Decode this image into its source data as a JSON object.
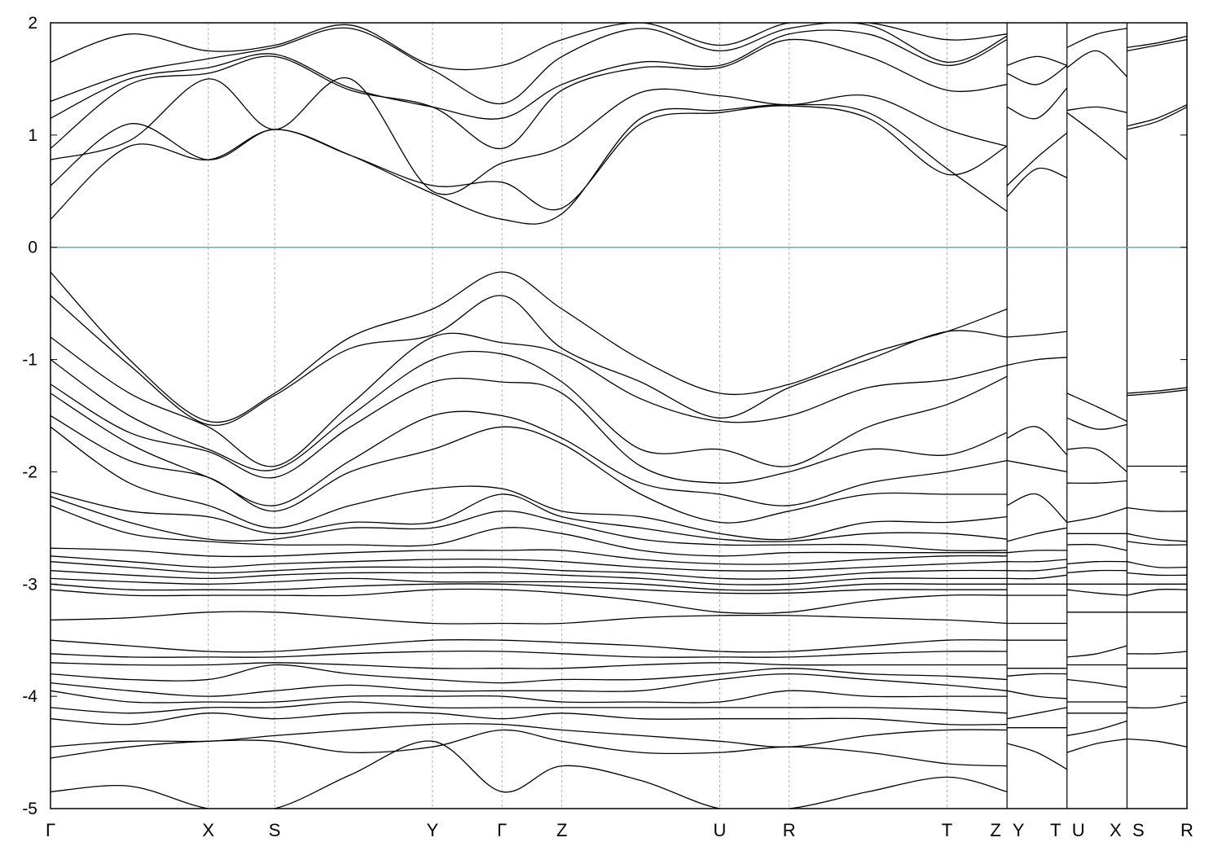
{
  "chart_data": {
    "type": "line",
    "title": "",
    "xlabel": "",
    "ylabel": "",
    "ylim": [
      -5,
      2
    ],
    "yticks": [
      "2",
      "1",
      "0",
      "-1",
      "-2",
      "-3",
      "-4",
      "-5"
    ],
    "grid": "vertical dashed lines at high-symmetry points",
    "reference_line": {
      "y": 0,
      "color": "#5aafc6"
    },
    "kpoints": [
      {
        "label": "Γ",
        "x": 0.0
      },
      {
        "label": "X",
        "x": 1.0
      },
      {
        "label": "S",
        "x": 1.42
      },
      {
        "label": "Y",
        "x": 2.42
      },
      {
        "label": "Γ",
        "x": 2.86
      },
      {
        "label": "Z",
        "x": 3.24
      },
      {
        "label": "U",
        "x": 4.24
      },
      {
        "label": "R",
        "x": 4.68
      },
      {
        "label": "T",
        "x": 5.68
      },
      {
        "label": "Z",
        "x": 6.06
      },
      {
        "label": "Y",
        "x": 6.06
      },
      {
        "label": "T",
        "x": 6.44
      },
      {
        "label": "U",
        "x": 6.44
      },
      {
        "label": "X",
        "x": 6.82
      },
      {
        "label": "S",
        "x": 6.82
      },
      {
        "label": "R",
        "x": 7.2
      }
    ],
    "xlim": [
      0,
      7.2
    ],
    "segments": [
      {
        "x": [
          0,
          0.5,
          1.0,
          1.42,
          1.9,
          2.42,
          2.86,
          3.24,
          3.74,
          4.24,
          4.68,
          5.18,
          5.68,
          6.06
        ],
        "bands": [
          [
            0.25,
            0.9,
            0.78,
            1.05,
            0.82,
            0.48,
            0.25,
            0.3,
            1.15,
            1.22,
            1.27,
            1.2,
            0.7,
            0.32
          ],
          [
            0.55,
            1.1,
            0.78,
            1.05,
            0.82,
            0.55,
            0.58,
            0.35,
            1.1,
            1.2,
            1.26,
            1.15,
            0.65,
            0.9
          ],
          [
            0.78,
            0.95,
            1.5,
            1.05,
            1.5,
            0.5,
            0.75,
            0.9,
            1.38,
            1.35,
            1.27,
            1.35,
            1.05,
            0.9
          ],
          [
            0.88,
            1.45,
            1.55,
            1.7,
            1.4,
            1.25,
            0.88,
            1.4,
            1.6,
            1.6,
            1.85,
            1.7,
            1.4,
            1.45
          ],
          [
            1.15,
            1.5,
            1.6,
            1.72,
            1.42,
            1.25,
            1.15,
            1.45,
            1.65,
            1.62,
            1.9,
            1.9,
            1.62,
            1.85
          ],
          [
            1.3,
            1.55,
            1.68,
            1.78,
            1.95,
            1.58,
            1.28,
            1.7,
            1.95,
            1.75,
            1.95,
            1.98,
            1.65,
            1.88
          ],
          [
            1.65,
            1.9,
            1.75,
            1.8,
            1.98,
            1.62,
            1.62,
            1.85,
            2.0,
            1.8,
            2.0,
            2.0,
            1.85,
            1.9
          ],
          [
            -0.22,
            -1.0,
            -1.55,
            -1.3,
            -0.8,
            -0.55,
            -0.22,
            -0.55,
            -1.0,
            -1.3,
            -1.22,
            -0.95,
            -0.75,
            -0.55
          ],
          [
            -0.43,
            -1.05,
            -1.58,
            -1.32,
            -0.9,
            -0.78,
            -0.43,
            -0.9,
            -1.2,
            -1.52,
            -1.25,
            -1.0,
            -0.75,
            -0.8
          ],
          [
            -0.8,
            -1.3,
            -1.6,
            -1.95,
            -1.4,
            -0.8,
            -0.85,
            -0.95,
            -1.35,
            -1.55,
            -1.5,
            -1.25,
            -1.18,
            -1.05
          ],
          [
            -1.0,
            -1.5,
            -1.8,
            -1.98,
            -1.5,
            -1.0,
            -0.95,
            -1.2,
            -1.8,
            -1.8,
            -1.95,
            -1.6,
            -1.4,
            -1.15
          ],
          [
            -1.22,
            -1.65,
            -1.82,
            -2.05,
            -1.6,
            -1.2,
            -1.2,
            -1.3,
            -1.95,
            -2.1,
            -2.0,
            -1.8,
            -1.85,
            -1.65
          ],
          [
            -1.3,
            -1.75,
            -2.05,
            -2.3,
            -1.9,
            -1.5,
            -1.5,
            -1.7,
            -2.1,
            -2.2,
            -2.3,
            -2.1,
            -2.0,
            -1.9
          ],
          [
            -1.5,
            -1.9,
            -2.05,
            -2.35,
            -2.0,
            -1.8,
            -1.6,
            -1.75,
            -2.2,
            -2.45,
            -2.35,
            -2.2,
            -2.2,
            -2.2
          ],
          [
            -1.6,
            -2.1,
            -2.3,
            -2.5,
            -2.3,
            -2.15,
            -2.15,
            -2.35,
            -2.4,
            -2.55,
            -2.6,
            -2.45,
            -2.45,
            -2.4
          ],
          [
            -2.18,
            -2.35,
            -2.4,
            -2.55,
            -2.45,
            -2.45,
            -2.2,
            -2.4,
            -2.5,
            -2.6,
            -2.62,
            -2.55,
            -2.55,
            -2.6
          ],
          [
            -2.22,
            -2.45,
            -2.6,
            -2.6,
            -2.5,
            -2.5,
            -2.35,
            -2.45,
            -2.6,
            -2.65,
            -2.65,
            -2.65,
            -2.7,
            -2.7
          ],
          [
            -2.3,
            -2.55,
            -2.62,
            -2.65,
            -2.65,
            -2.65,
            -2.5,
            -2.55,
            -2.7,
            -2.75,
            -2.72,
            -2.72,
            -2.72,
            -2.72
          ],
          [
            -2.68,
            -2.7,
            -2.75,
            -2.75,
            -2.72,
            -2.7,
            -2.7,
            -2.7,
            -2.78,
            -2.82,
            -2.82,
            -2.78,
            -2.75,
            -2.75
          ],
          [
            -2.75,
            -2.8,
            -2.85,
            -2.82,
            -2.8,
            -2.78,
            -2.78,
            -2.8,
            -2.85,
            -2.88,
            -2.88,
            -2.85,
            -2.82,
            -2.8
          ],
          [
            -2.8,
            -2.85,
            -2.9,
            -2.88,
            -2.85,
            -2.85,
            -2.85,
            -2.88,
            -2.9,
            -2.95,
            -2.95,
            -2.9,
            -2.88,
            -2.88
          ],
          [
            -2.88,
            -2.92,
            -2.95,
            -2.92,
            -2.9,
            -2.9,
            -2.9,
            -2.92,
            -2.95,
            -3.0,
            -3.0,
            -2.95,
            -2.95,
            -2.95
          ],
          [
            -2.95,
            -2.98,
            -3.0,
            -2.98,
            -2.95,
            -2.98,
            -2.98,
            -2.98,
            -3.0,
            -3.05,
            -3.05,
            -3.0,
            -3.0,
            -3.0
          ],
          [
            -3.0,
            -3.05,
            -3.05,
            -3.05,
            -3.02,
            -3.0,
            -3.0,
            -3.02,
            -3.05,
            -3.08,
            -3.08,
            -3.05,
            -3.05,
            -3.05
          ],
          [
            -3.05,
            -3.1,
            -3.1,
            -3.1,
            -3.1,
            -3.05,
            -3.05,
            -3.08,
            -3.15,
            -3.25,
            -3.25,
            -3.15,
            -3.1,
            -3.1
          ],
          [
            -3.32,
            -3.3,
            -3.25,
            -3.25,
            -3.3,
            -3.35,
            -3.35,
            -3.35,
            -3.3,
            -3.28,
            -3.28,
            -3.3,
            -3.32,
            -3.35
          ],
          [
            -3.5,
            -3.55,
            -3.6,
            -3.6,
            -3.55,
            -3.5,
            -3.5,
            -3.52,
            -3.55,
            -3.6,
            -3.6,
            -3.55,
            -3.5,
            -3.5
          ],
          [
            -3.62,
            -3.65,
            -3.65,
            -3.65,
            -3.62,
            -3.6,
            -3.6,
            -3.62,
            -3.65,
            -3.65,
            -3.65,
            -3.62,
            -3.6,
            -3.6
          ],
          [
            -3.7,
            -3.72,
            -3.72,
            -3.7,
            -3.72,
            -3.75,
            -3.75,
            -3.75,
            -3.72,
            -3.7,
            -3.72,
            -3.72,
            -3.72,
            -3.72
          ],
          [
            -3.8,
            -3.85,
            -3.85,
            -3.72,
            -3.8,
            -3.85,
            -3.88,
            -3.85,
            -3.85,
            -3.8,
            -3.75,
            -3.8,
            -3.82,
            -3.85
          ],
          [
            -3.88,
            -3.95,
            -4.0,
            -3.95,
            -3.9,
            -3.95,
            -3.95,
            -3.95,
            -3.95,
            -3.85,
            -3.8,
            -3.85,
            -3.9,
            -3.95
          ],
          [
            -3.95,
            -4.05,
            -4.05,
            -4.05,
            -4.0,
            -4.0,
            -4.0,
            -4.05,
            -4.05,
            -4.05,
            -3.95,
            -4.0,
            -4.0,
            -4.0
          ],
          [
            -4.1,
            -4.15,
            -4.1,
            -4.1,
            -4.05,
            -4.1,
            -4.1,
            -4.1,
            -4.1,
            -4.1,
            -4.1,
            -4.1,
            -4.12,
            -4.15
          ],
          [
            -4.2,
            -4.25,
            -4.15,
            -4.2,
            -4.15,
            -4.15,
            -4.2,
            -4.15,
            -4.2,
            -4.2,
            -4.2,
            -4.2,
            -4.25,
            -4.25
          ],
          [
            -4.45,
            -4.4,
            -4.4,
            -4.35,
            -4.3,
            -4.25,
            -4.25,
            -4.3,
            -4.35,
            -4.4,
            -4.45,
            -4.35,
            -4.3,
            -4.3
          ],
          [
            -4.55,
            -4.45,
            -4.4,
            -4.4,
            -4.5,
            -4.45,
            -4.3,
            -4.4,
            -4.5,
            -4.5,
            -4.45,
            -4.5,
            -4.6,
            -4.62
          ],
          [
            -4.85,
            -4.8,
            -5.0,
            -5.0,
            -4.7,
            -4.4,
            -4.85,
            -4.62,
            -4.75,
            -5.0,
            -5.0,
            -4.85,
            -4.72,
            -4.85
          ]
        ]
      },
      {
        "x": [
          6.06,
          6.25,
          6.44
        ],
        "bands": [
          [
            0.45,
            0.7,
            0.62
          ],
          [
            0.55,
            0.8,
            1.02
          ],
          [
            1.25,
            1.15,
            1.42
          ],
          [
            1.55,
            1.45,
            1.62
          ],
          [
            1.62,
            1.7,
            1.62
          ],
          [
            -0.8,
            -0.78,
            -0.75
          ],
          [
            -1.05,
            -1.0,
            -0.98
          ],
          [
            -1.7,
            -1.6,
            -1.85
          ],
          [
            -1.9,
            -1.95,
            -2.0
          ],
          [
            -2.3,
            -2.2,
            -2.45
          ],
          [
            -2.62,
            -2.55,
            -2.5
          ],
          [
            -2.72,
            -2.7,
            -2.7
          ],
          [
            -2.8,
            -2.8,
            -2.78
          ],
          [
            -2.88,
            -2.88,
            -2.85
          ],
          [
            -2.95,
            -2.95,
            -2.92
          ],
          [
            -3.0,
            -3.0,
            -3.0
          ],
          [
            -3.1,
            -3.1,
            -3.1
          ],
          [
            -3.35,
            -3.35,
            -3.35
          ],
          [
            -3.5,
            -3.5,
            -3.5
          ],
          [
            -3.75,
            -3.75,
            -3.75
          ],
          [
            -3.82,
            -3.8,
            -3.8
          ],
          [
            -3.95,
            -4.0,
            -4.02
          ],
          [
            -4.2,
            -4.15,
            -4.1
          ],
          [
            -4.28,
            -4.28,
            -4.28
          ],
          [
            -4.42,
            -4.5,
            -4.65
          ]
        ]
      },
      {
        "x": [
          6.44,
          6.63,
          6.82
        ],
        "bands": [
          [
            1.2,
            1.0,
            0.78
          ],
          [
            1.22,
            1.25,
            1.2
          ],
          [
            1.6,
            1.75,
            1.52
          ],
          [
            1.78,
            1.9,
            1.95
          ],
          [
            -1.3,
            -1.42,
            -1.55
          ],
          [
            -1.52,
            -1.62,
            -1.58
          ],
          [
            -1.8,
            -1.8,
            -2.0
          ],
          [
            -2.1,
            -2.1,
            -2.08
          ],
          [
            -2.45,
            -2.4,
            -2.32
          ],
          [
            -2.55,
            -2.55,
            -2.55
          ],
          [
            -2.65,
            -2.65,
            -2.7
          ],
          [
            -2.82,
            -2.8,
            -2.8
          ],
          [
            -2.9,
            -2.88,
            -2.88
          ],
          [
            -3.0,
            -3.0,
            -3.0
          ],
          [
            -3.05,
            -3.08,
            -3.1
          ],
          [
            -3.25,
            -3.25,
            -3.25
          ],
          [
            -3.65,
            -3.62,
            -3.55
          ],
          [
            -3.72,
            -3.72,
            -3.72
          ],
          [
            -3.85,
            -3.88,
            -3.92
          ],
          [
            -4.05,
            -4.05,
            -4.05
          ],
          [
            -4.15,
            -4.15,
            -4.15
          ],
          [
            -4.35,
            -4.3,
            -4.22
          ],
          [
            -4.5,
            -4.42,
            -4.38
          ]
        ]
      },
      {
        "x": [
          6.82,
          7.01,
          7.2
        ],
        "bands": [
          [
            1.05,
            1.12,
            1.25
          ],
          [
            1.08,
            1.15,
            1.27
          ],
          [
            1.75,
            1.8,
            1.85
          ],
          [
            1.78,
            1.82,
            1.88
          ],
          [
            -1.3,
            -1.28,
            -1.25
          ],
          [
            -1.32,
            -1.3,
            -1.27
          ],
          [
            -1.95,
            -1.95,
            -1.95
          ],
          [
            -2.32,
            -2.35,
            -2.35
          ],
          [
            -2.55,
            -2.6,
            -2.62
          ],
          [
            -2.62,
            -2.65,
            -2.65
          ],
          [
            -2.8,
            -2.85,
            -2.85
          ],
          [
            -2.9,
            -2.92,
            -2.92
          ],
          [
            -3.0,
            -3.0,
            -3.0
          ],
          [
            -3.1,
            -3.05,
            -3.05
          ],
          [
            -3.25,
            -3.25,
            -3.25
          ],
          [
            -3.62,
            -3.62,
            -3.6
          ],
          [
            -3.75,
            -3.75,
            -3.75
          ],
          [
            -4.1,
            -4.1,
            -4.05
          ],
          [
            -4.38,
            -4.4,
            -4.45
          ]
        ]
      }
    ]
  }
}
